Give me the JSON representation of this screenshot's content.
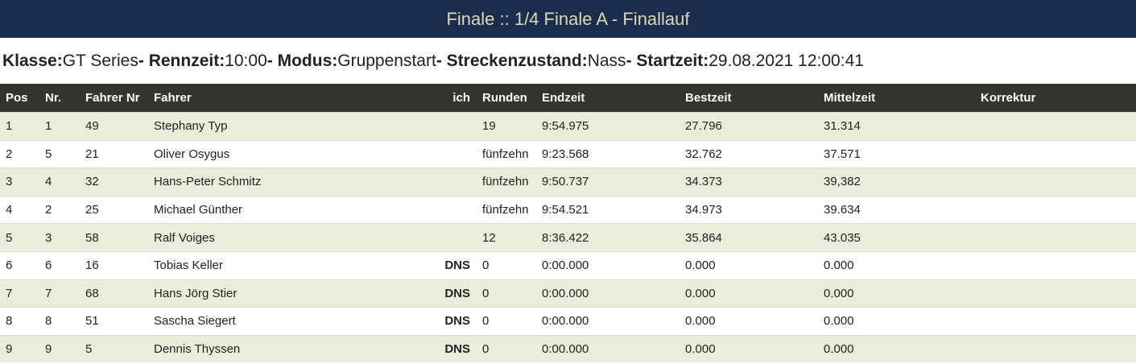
{
  "title": "Finale :: 1/4 Finale A - Finallauf",
  "info": {
    "klasse_label": "Klasse:",
    "klasse": "GT Series",
    "rennzeit_label": "- Rennzeit:",
    "rennzeit": "10:00",
    "modus_label": "- Modus:",
    "modus": "Gruppenstart",
    "strecke_label": "- Streckenzustand:",
    "strecke": "Nass",
    "start_label": "- Startzeit:",
    "start": "29.08.2021 12:00:41"
  },
  "columns": [
    "Pos",
    "Nr.",
    "Fahrer Nr",
    "Fahrer",
    "ich",
    "Runden",
    "Endzeit",
    "Bestzeit",
    "Mittelzeit",
    "Korrektur"
  ],
  "rows": [
    [
      "1",
      "1",
      "49",
      "Stephany Typ",
      "",
      "19",
      "9:54.975",
      "27.796",
      "31.314",
      ""
    ],
    [
      "2",
      "5",
      "21",
      "Oliver Osygus",
      "",
      "fünfzehn",
      "9:23.568",
      "32.762",
      "37.571",
      ""
    ],
    [
      "3",
      "4",
      "32",
      "Hans-Peter Schmitz",
      "",
      "fünfzehn",
      "9:50.737",
      "34.373",
      "39,382",
      ""
    ],
    [
      "4",
      "2",
      "25",
      "Michael Günther",
      "",
      "fünfzehn",
      "9:54.521",
      "34.973",
      "39.634",
      ""
    ],
    [
      "5",
      "3",
      "58",
      "Ralf Voiges",
      "",
      "12",
      "8:36.422",
      "35.864",
      "43.035",
      ""
    ],
    [
      "6",
      "6",
      "16",
      "Tobias Keller",
      "DNS",
      "0",
      "0:00.000",
      "0.000",
      "0.000",
      ""
    ],
    [
      "7",
      "7",
      "68",
      "Hans Jörg Stier",
      "DNS",
      "0",
      "0:00.000",
      "0.000",
      "0.000",
      ""
    ],
    [
      "8",
      "8",
      "51",
      "Sascha Siegert",
      "DNS",
      "0",
      "0:00.000",
      "0.000",
      "0.000",
      ""
    ],
    [
      "9",
      "9",
      "5",
      "Dennis Thyssen",
      "DNS",
      "0",
      "0:00.000",
      "0.000",
      "0.000",
      ""
    ]
  ]
}
